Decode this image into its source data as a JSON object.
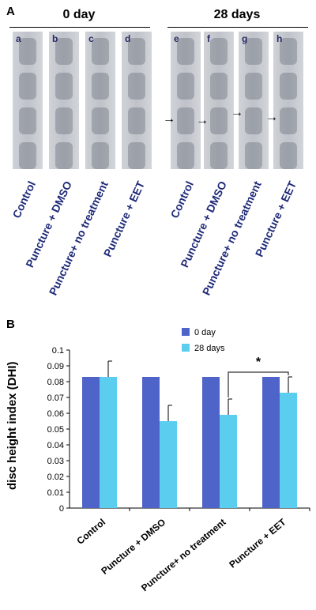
{
  "panel_a": {
    "letter": "A",
    "groups": [
      {
        "label": "0 day"
      },
      {
        "label": "28 days"
      }
    ],
    "images": [
      {
        "letter": "a",
        "caption": "Control"
      },
      {
        "letter": "b",
        "caption": "Puncture + DMSO"
      },
      {
        "letter": "c",
        "caption": "Puncture+ no treatment"
      },
      {
        "letter": "d",
        "caption": "Puncture + EET"
      },
      {
        "letter": "e",
        "caption": "Control"
      },
      {
        "letter": "f",
        "caption": "Puncture + DMSO"
      },
      {
        "letter": "g",
        "caption": "Puncture+ no treatment"
      },
      {
        "letter": "h",
        "caption": "Puncture + EET"
      }
    ],
    "arrow_glyph": "→"
  },
  "panel_b": {
    "letter": "B",
    "significance_marker": "*"
  },
  "chart_data": {
    "type": "bar",
    "title": "",
    "xlabel": "",
    "ylabel": "disc height index (DHI)",
    "ylim": [
      0,
      0.1
    ],
    "yticks": [
      "0",
      "0.01",
      "0.02",
      "0.03",
      "0.04",
      "0.05",
      "0.06",
      "0.07",
      "0.08",
      "0.09",
      "0.1"
    ],
    "categories": [
      "Control",
      "Puncture + DMSO",
      "Puncture+ no treatment",
      "Puncture + EET"
    ],
    "series": [
      {
        "name": "0 day",
        "values": [
          0.083,
          0.083,
          0.083,
          0.083
        ],
        "errors": [
          0,
          0,
          0,
          0
        ],
        "color": "#4f64c8"
      },
      {
        "name": "28 days",
        "values": [
          0.083,
          0.055,
          0.059,
          0.073
        ],
        "errors": [
          0.01,
          0.01,
          0.01,
          0.01
        ],
        "color": "#5bcef0"
      }
    ],
    "legend_position": "top-center",
    "grid": false,
    "significance": {
      "between_categories": [
        2,
        3
      ],
      "series": 1,
      "label": "*"
    }
  }
}
